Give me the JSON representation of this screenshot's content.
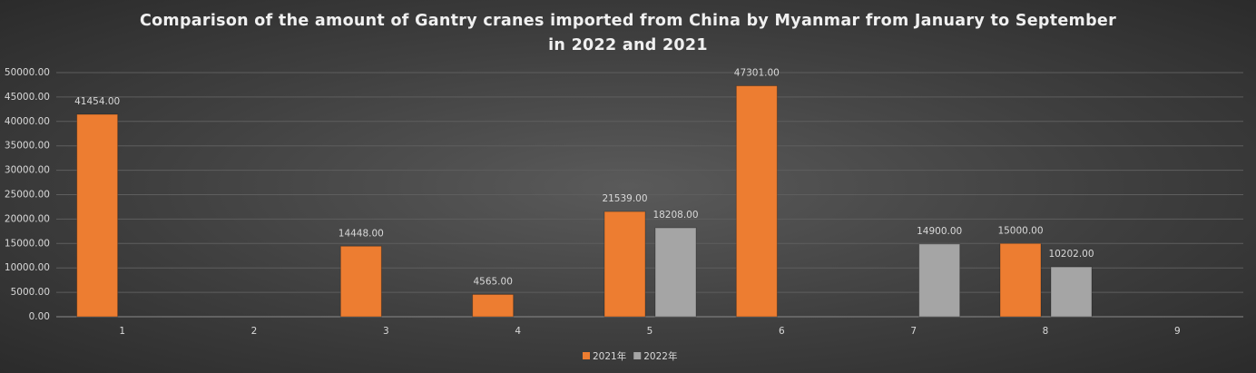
{
  "chart_data": {
    "type": "bar",
    "title": "Comparison of the amount of Gantry cranes imported from China by Myanmar from January to September in 2022 and 2021",
    "categories": [
      "1",
      "2",
      "3",
      "4",
      "5",
      "6",
      "7",
      "8",
      "9"
    ],
    "series": [
      {
        "name": "2021年",
        "color": "#ed7d31",
        "values": [
          41454,
          null,
          14448,
          4565,
          21539,
          47301,
          null,
          15000,
          null
        ],
        "value_labels": [
          "41454.00",
          null,
          "14448.00",
          "4565.00",
          "21539.00",
          "47301.00",
          null,
          "15000.00",
          null
        ]
      },
      {
        "name": "2022年",
        "color": "#a5a5a5",
        "values": [
          null,
          null,
          null,
          null,
          18208,
          null,
          14900,
          10202,
          null
        ],
        "value_labels": [
          null,
          null,
          null,
          null,
          "18208.00",
          null,
          "14900.00",
          "10202.00",
          null
        ]
      }
    ],
    "ylim": [
      0,
      50000
    ],
    "yticks": [
      {
        "value": 0,
        "label": "0.00"
      },
      {
        "value": 5000,
        "label": "5000.00"
      },
      {
        "value": 10000,
        "label": "10000.00"
      },
      {
        "value": 15000,
        "label": "15000.00"
      },
      {
        "value": 20000,
        "label": "20000.00"
      },
      {
        "value": 25000,
        "label": "25000.00"
      },
      {
        "value": 30000,
        "label": "30000.00"
      },
      {
        "value": 35000,
        "label": "35000.00"
      },
      {
        "value": 40000,
        "label": "40000.00"
      },
      {
        "value": 45000,
        "label": "45000.00"
      },
      {
        "value": 50000,
        "label": "50000.00"
      }
    ],
    "grid": true,
    "legend": "bottom"
  }
}
